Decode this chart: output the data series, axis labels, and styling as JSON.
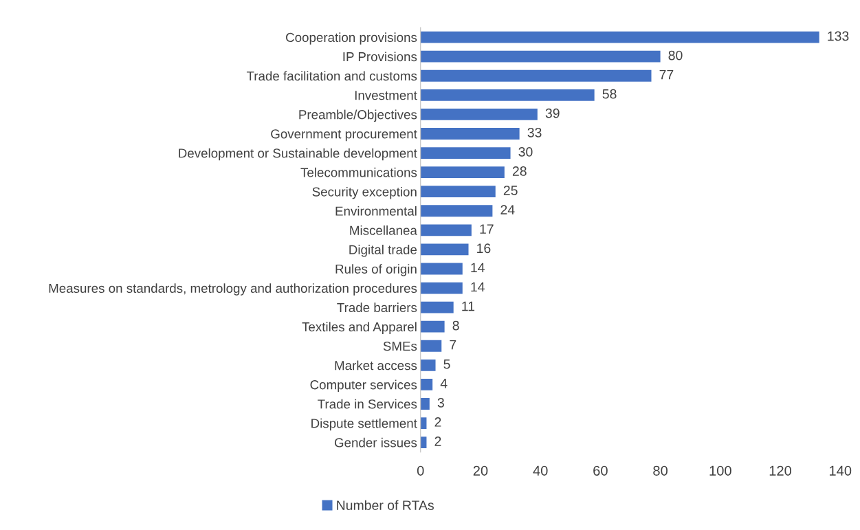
{
  "chart_data": {
    "type": "bar",
    "orientation": "horizontal",
    "categories": [
      "Cooperation provisions",
      "IP Provisions",
      "Trade facilitation and customs",
      "Investment",
      "Preamble/Objectives",
      "Government procurement",
      "Development or Sustainable development",
      "Telecommunications",
      "Security exception",
      "Environmental",
      "Miscellanea",
      "Digital trade",
      "Rules of origin",
      "Measures on standards, metrology and authorization procedures",
      "Trade barriers",
      "Textiles and Apparel",
      "SMEs",
      "Market access",
      "Computer services",
      "Trade in Services",
      "Dispute settlement",
      "Gender issues"
    ],
    "series": [
      {
        "name": "Number of RTAs",
        "color": "#4472c4",
        "values": [
          133,
          80,
          77,
          58,
          39,
          33,
          30,
          28,
          25,
          24,
          17,
          16,
          14,
          14,
          11,
          8,
          7,
          5,
          4,
          3,
          2,
          2
        ]
      }
    ],
    "xlim": [
      0,
      140
    ],
    "xticks": [
      0,
      20,
      40,
      60,
      80,
      100,
      120,
      140
    ],
    "data_labels": true,
    "grid": false,
    "legend": "bottom"
  }
}
